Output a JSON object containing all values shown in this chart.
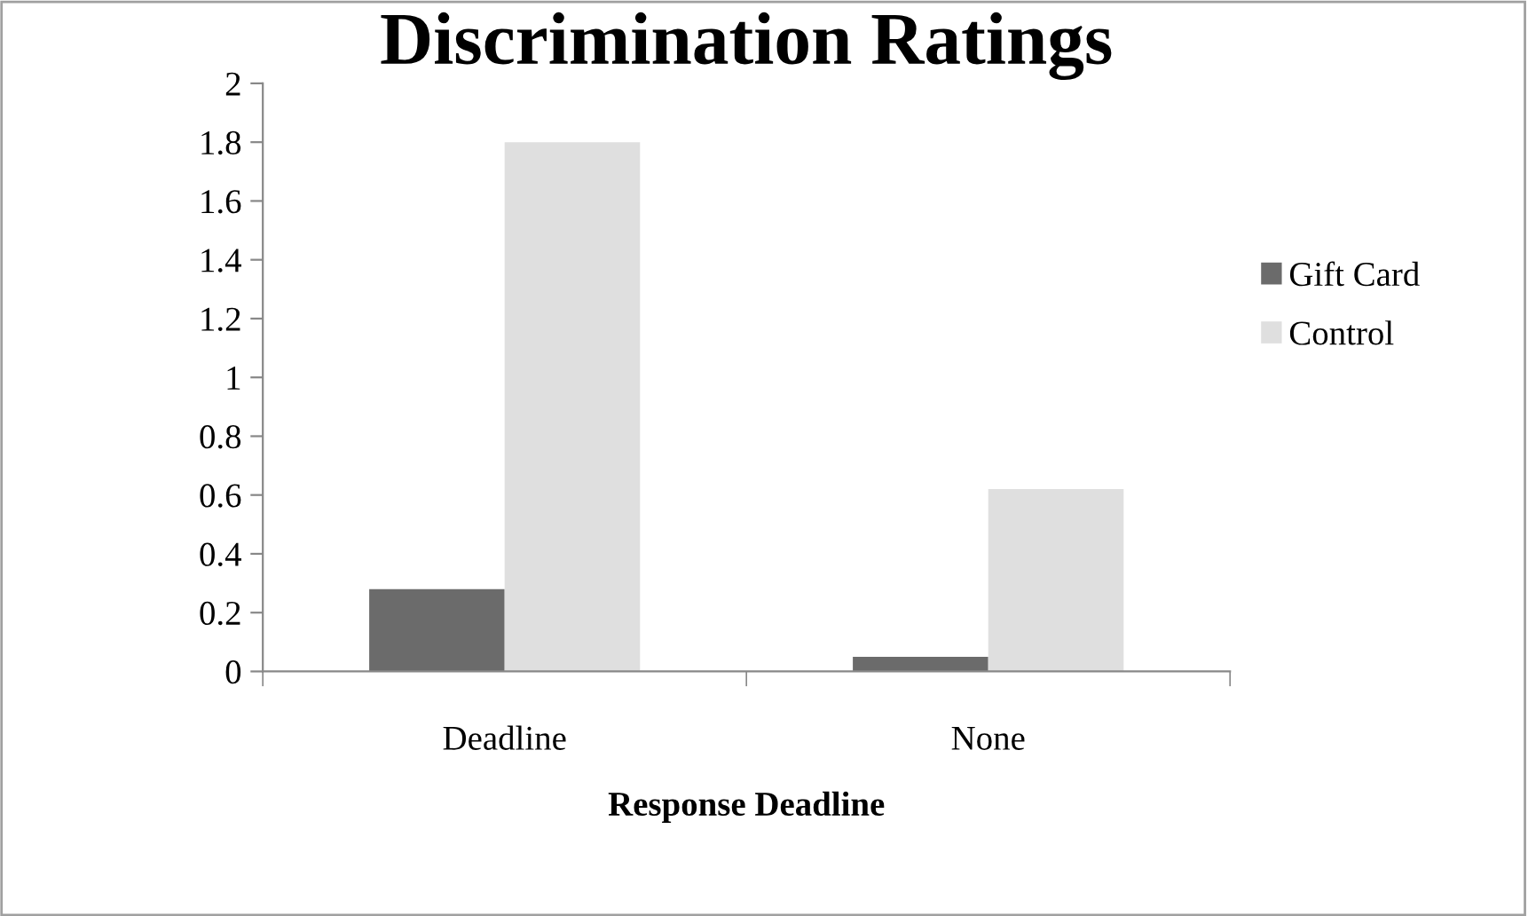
{
  "chart_data": {
    "type": "bar",
    "title": "Discrimination Ratings",
    "xlabel": "Response Deadline",
    "categories": [
      "Deadline",
      "None"
    ],
    "series": [
      {
        "name": "Gift Card",
        "color": "#6b6b6b",
        "values": [
          0.28,
          0.05
        ]
      },
      {
        "name": "Control",
        "color": "#dfdfdf",
        "values": [
          1.8,
          0.62
        ]
      }
    ],
    "ylim": [
      0,
      2
    ],
    "yticks": [
      0,
      0.2,
      0.4,
      0.6,
      0.8,
      1,
      1.2,
      1.4,
      1.6,
      1.8,
      2
    ],
    "grid": false,
    "legend": "right"
  }
}
